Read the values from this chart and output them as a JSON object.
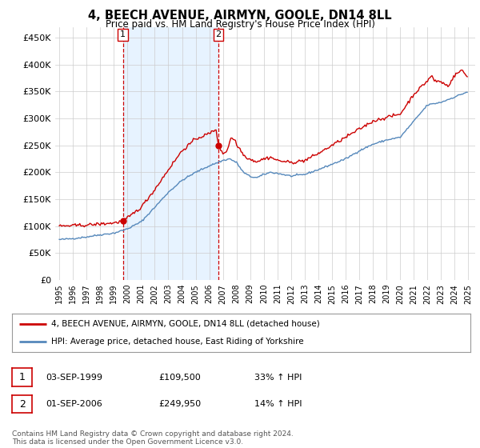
{
  "title": "4, BEECH AVENUE, AIRMYN, GOOLE, DN14 8LL",
  "subtitle": "Price paid vs. HM Land Registry's House Price Index (HPI)",
  "ylabel_ticks": [
    "£0",
    "£50K",
    "£100K",
    "£150K",
    "£200K",
    "£250K",
    "£300K",
    "£350K",
    "£400K",
    "£450K"
  ],
  "ytick_values": [
    0,
    50000,
    100000,
    150000,
    200000,
    250000,
    300000,
    350000,
    400000,
    450000
  ],
  "ylim": [
    0,
    470000
  ],
  "xlim_start": 1994.7,
  "xlim_end": 2025.5,
  "transaction1": {
    "date": 1999.67,
    "price": 109500,
    "label": "1"
  },
  "transaction2": {
    "date": 2006.67,
    "price": 249950,
    "label": "2"
  },
  "legend_line1": "4, BEECH AVENUE, AIRMYN, GOOLE, DN14 8LL (detached house)",
  "legend_line2": "HPI: Average price, detached house, East Riding of Yorkshire",
  "table_row1": [
    "1",
    "03-SEP-1999",
    "£109,500",
    "33% ↑ HPI"
  ],
  "table_row2": [
    "2",
    "01-SEP-2006",
    "£249,950",
    "14% ↑ HPI"
  ],
  "footnote": "Contains HM Land Registry data © Crown copyright and database right 2024.\nThis data is licensed under the Open Government Licence v3.0.",
  "line_color_red": "#cc0000",
  "line_color_blue": "#5588bb",
  "shade_color": "#ddeeff",
  "vline_color": "#cc0000",
  "background_color": "#ffffff",
  "grid_color": "#cccccc",
  "xtick_years": [
    1995,
    1996,
    1997,
    1998,
    1999,
    2000,
    2001,
    2002,
    2003,
    2004,
    2005,
    2006,
    2007,
    2008,
    2009,
    2010,
    2011,
    2012,
    2013,
    2014,
    2015,
    2016,
    2017,
    2018,
    2019,
    2020,
    2021,
    2022,
    2023,
    2024,
    2025
  ],
  "hpi_anchors": [
    [
      1995.0,
      75000
    ],
    [
      1996.0,
      77000
    ],
    [
      1997.0,
      80000
    ],
    [
      1998.0,
      84000
    ],
    [
      1999.0,
      87000
    ],
    [
      2000.0,
      95000
    ],
    [
      2001.0,
      108000
    ],
    [
      2002.0,
      135000
    ],
    [
      2003.0,
      163000
    ],
    [
      2004.0,
      185000
    ],
    [
      2005.0,
      200000
    ],
    [
      2006.0,
      212000
    ],
    [
      2007.0,
      222000
    ],
    [
      2007.5,
      225000
    ],
    [
      2008.0,
      218000
    ],
    [
      2008.5,
      200000
    ],
    [
      2009.0,
      192000
    ],
    [
      2009.5,
      190000
    ],
    [
      2010.0,
      196000
    ],
    [
      2010.5,
      200000
    ],
    [
      2011.0,
      198000
    ],
    [
      2012.0,
      193000
    ],
    [
      2013.0,
      196000
    ],
    [
      2014.0,
      205000
    ],
    [
      2015.0,
      215000
    ],
    [
      2016.0,
      225000
    ],
    [
      2017.0,
      240000
    ],
    [
      2018.0,
      252000
    ],
    [
      2019.0,
      260000
    ],
    [
      2020.0,
      265000
    ],
    [
      2021.0,
      295000
    ],
    [
      2022.0,
      325000
    ],
    [
      2023.0,
      330000
    ],
    [
      2024.0,
      340000
    ],
    [
      2025.0,
      350000
    ]
  ],
  "prop_anchors": [
    [
      1995.0,
      100000
    ],
    [
      1996.0,
      101000
    ],
    [
      1997.0,
      102000
    ],
    [
      1998.0,
      104000
    ],
    [
      1999.0,
      106000
    ],
    [
      1999.67,
      109500
    ],
    [
      2000.0,
      115000
    ],
    [
      2001.0,
      135000
    ],
    [
      2002.0,
      168000
    ],
    [
      2003.0,
      205000
    ],
    [
      2004.0,
      240000
    ],
    [
      2005.0,
      262000
    ],
    [
      2006.0,
      272000
    ],
    [
      2006.5,
      280000
    ],
    [
      2006.67,
      249950
    ],
    [
      2007.0,
      235000
    ],
    [
      2007.3,
      240000
    ],
    [
      2007.6,
      265000
    ],
    [
      2007.9,
      260000
    ],
    [
      2008.0,
      250000
    ],
    [
      2008.3,
      242000
    ],
    [
      2008.5,
      232000
    ],
    [
      2009.0,
      224000
    ],
    [
      2009.5,
      220000
    ],
    [
      2010.0,
      225000
    ],
    [
      2010.5,
      228000
    ],
    [
      2011.0,
      222000
    ],
    [
      2012.0,
      218000
    ],
    [
      2013.0,
      222000
    ],
    [
      2014.0,
      235000
    ],
    [
      2015.0,
      250000
    ],
    [
      2016.0,
      265000
    ],
    [
      2017.0,
      280000
    ],
    [
      2018.0,
      295000
    ],
    [
      2019.0,
      302000
    ],
    [
      2020.0,
      308000
    ],
    [
      2021.0,
      345000
    ],
    [
      2022.0,
      370000
    ],
    [
      2022.3,
      380000
    ],
    [
      2022.5,
      370000
    ],
    [
      2023.0,
      368000
    ],
    [
      2023.5,
      360000
    ],
    [
      2024.0,
      380000
    ],
    [
      2024.5,
      390000
    ],
    [
      2025.0,
      375000
    ]
  ]
}
